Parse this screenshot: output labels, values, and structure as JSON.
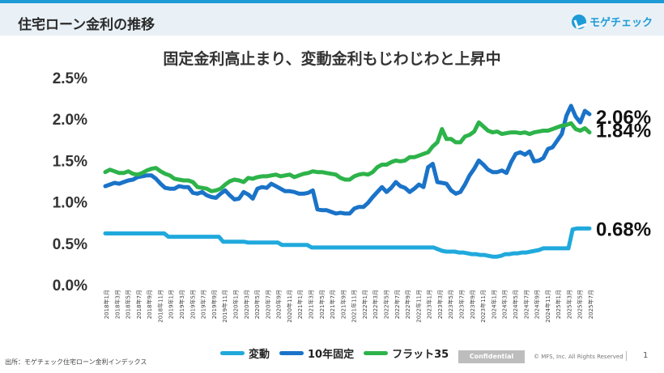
{
  "header": {
    "title": "住宅ローン金利の推移",
    "logo_text": "モゲチェック"
  },
  "chart_data": {
    "type": "line",
    "title": "固定金利高止まり、変動金利もじわじわと上昇中",
    "xlabel": "",
    "ylabel": "",
    "ylim": [
      0.0,
      2.5
    ],
    "yticks": [
      "0.0%",
      "0.5%",
      "1.0%",
      "1.5%",
      "2.0%",
      "2.5%"
    ],
    "x_labels": [
      "2018年1月",
      "2018年3月",
      "2018年5月",
      "2018年7月",
      "2018年9月",
      "2018年11月",
      "2019年1月",
      "2019年3月",
      "2019年5月",
      "2019年7月",
      "2019年9月",
      "2019年11月",
      "2020年1月",
      "2020年3月",
      "2020年5月",
      "2020年7月",
      "2020年9月",
      "2020年11月",
      "2021年1月",
      "2021年3月",
      "2021年5月",
      "2021年7月",
      "2021年9月",
      "2021年11月",
      "2022年1月",
      "2022年3月",
      "2022年5月",
      "2022年7月",
      "2022年9月",
      "2022年11月",
      "2023年1月",
      "2023年3月",
      "2023年5月",
      "2023年7月",
      "2023年9月",
      "2023年11月",
      "2024年1月",
      "2024年3月",
      "2024年5月",
      "2024年7月",
      "2024年9月",
      "2024年11月",
      "2025年1月",
      "2025年3月",
      "2025年5月",
      "2025年7月"
    ],
    "series": [
      {
        "name": "変動",
        "color": "#20a9dc",
        "end_label": "0.68%",
        "values": [
          0.62,
          0.62,
          0.62,
          0.62,
          0.62,
          0.62,
          0.62,
          0.62,
          0.62,
          0.62,
          0.62,
          0.62,
          0.62,
          0.62,
          0.62,
          0.58,
          0.58,
          0.58,
          0.58,
          0.58,
          0.58,
          0.58,
          0.58,
          0.58,
          0.58,
          0.58,
          0.58,
          0.58,
          0.52,
          0.52,
          0.52,
          0.52,
          0.52,
          0.52,
          0.51,
          0.51,
          0.51,
          0.51,
          0.51,
          0.51,
          0.51,
          0.51,
          0.48,
          0.48,
          0.48,
          0.48,
          0.48,
          0.48,
          0.48,
          0.45,
          0.45,
          0.45,
          0.45,
          0.45,
          0.45,
          0.45,
          0.45,
          0.45,
          0.45,
          0.45,
          0.45,
          0.45,
          0.45,
          0.45,
          0.45,
          0.45,
          0.45,
          0.45,
          0.45,
          0.45,
          0.45,
          0.45,
          0.45,
          0.45,
          0.45,
          0.45,
          0.45,
          0.45,
          0.45,
          0.43,
          0.41,
          0.4,
          0.4,
          0.4,
          0.39,
          0.39,
          0.38,
          0.37,
          0.37,
          0.36,
          0.36,
          0.35,
          0.34,
          0.34,
          0.35,
          0.37,
          0.37,
          0.38,
          0.38,
          0.39,
          0.39,
          0.4,
          0.41,
          0.42,
          0.44,
          0.44,
          0.44,
          0.44,
          0.44,
          0.44,
          0.44,
          0.67,
          0.68,
          0.68,
          0.68,
          0.68
        ]
      },
      {
        "name": "10年固定",
        "color": "#1a73c8",
        "end_label": "2.06%",
        "values": [
          1.19,
          1.21,
          1.23,
          1.22,
          1.24,
          1.26,
          1.27,
          1.3,
          1.31,
          1.32,
          1.32,
          1.28,
          1.22,
          1.17,
          1.16,
          1.16,
          1.19,
          1.18,
          1.18,
          1.11,
          1.1,
          1.12,
          1.08,
          1.06,
          1.05,
          1.1,
          1.14,
          1.08,
          1.03,
          1.04,
          1.12,
          1.09,
          1.04,
          1.16,
          1.18,
          1.17,
          1.22,
          1.19,
          1.16,
          1.13,
          1.13,
          1.12,
          1.1,
          1.1,
          1.11,
          1.14,
          0.91,
          0.9,
          0.9,
          0.88,
          0.86,
          0.87,
          0.86,
          0.86,
          0.92,
          0.94,
          0.94,
          0.99,
          1.06,
          1.12,
          1.18,
          1.12,
          1.17,
          1.24,
          1.19,
          1.17,
          1.12,
          1.16,
          1.21,
          1.18,
          1.42,
          1.46,
          1.24,
          1.23,
          1.22,
          1.14,
          1.1,
          1.12,
          1.21,
          1.32,
          1.4,
          1.5,
          1.45,
          1.39,
          1.36,
          1.36,
          1.38,
          1.35,
          1.48,
          1.58,
          1.6,
          1.57,
          1.61,
          1.49,
          1.5,
          1.53,
          1.64,
          1.66,
          1.74,
          1.82,
          2.04,
          2.16,
          2.03,
          1.96,
          2.1,
          2.06
        ]
      },
      {
        "name": "フラット35",
        "color": "#2db34a",
        "end_label": "1.84%",
        "values": [
          1.36,
          1.39,
          1.37,
          1.35,
          1.35,
          1.37,
          1.34,
          1.33,
          1.35,
          1.38,
          1.4,
          1.41,
          1.37,
          1.34,
          1.32,
          1.28,
          1.27,
          1.26,
          1.26,
          1.24,
          1.18,
          1.17,
          1.16,
          1.13,
          1.14,
          1.16,
          1.21,
          1.25,
          1.27,
          1.26,
          1.24,
          1.29,
          1.28,
          1.3,
          1.31,
          1.31,
          1.32,
          1.33,
          1.31,
          1.32,
          1.33,
          1.3,
          1.32,
          1.34,
          1.35,
          1.37,
          1.36,
          1.36,
          1.35,
          1.34,
          1.33,
          1.29,
          1.27,
          1.27,
          1.31,
          1.33,
          1.34,
          1.33,
          1.36,
          1.42,
          1.45,
          1.45,
          1.48,
          1.5,
          1.49,
          1.5,
          1.54,
          1.54,
          1.56,
          1.58,
          1.6,
          1.67,
          1.72,
          1.88,
          1.76,
          1.76,
          1.72,
          1.72,
          1.79,
          1.81,
          1.85,
          1.96,
          1.91,
          1.86,
          1.84,
          1.85,
          1.82,
          1.83,
          1.84,
          1.84,
          1.83,
          1.84,
          1.82,
          1.84,
          1.85,
          1.86,
          1.86,
          1.88,
          1.9,
          1.92,
          1.93,
          1.95,
          1.88,
          1.86,
          1.89,
          1.84
        ]
      }
    ]
  },
  "footer": {
    "source": "出所：モゲチェック住宅ローン金利インデックス",
    "confidential": "Confidential",
    "copyright": "© MFS, Inc. All Rights Reserved",
    "page_number": "1"
  }
}
